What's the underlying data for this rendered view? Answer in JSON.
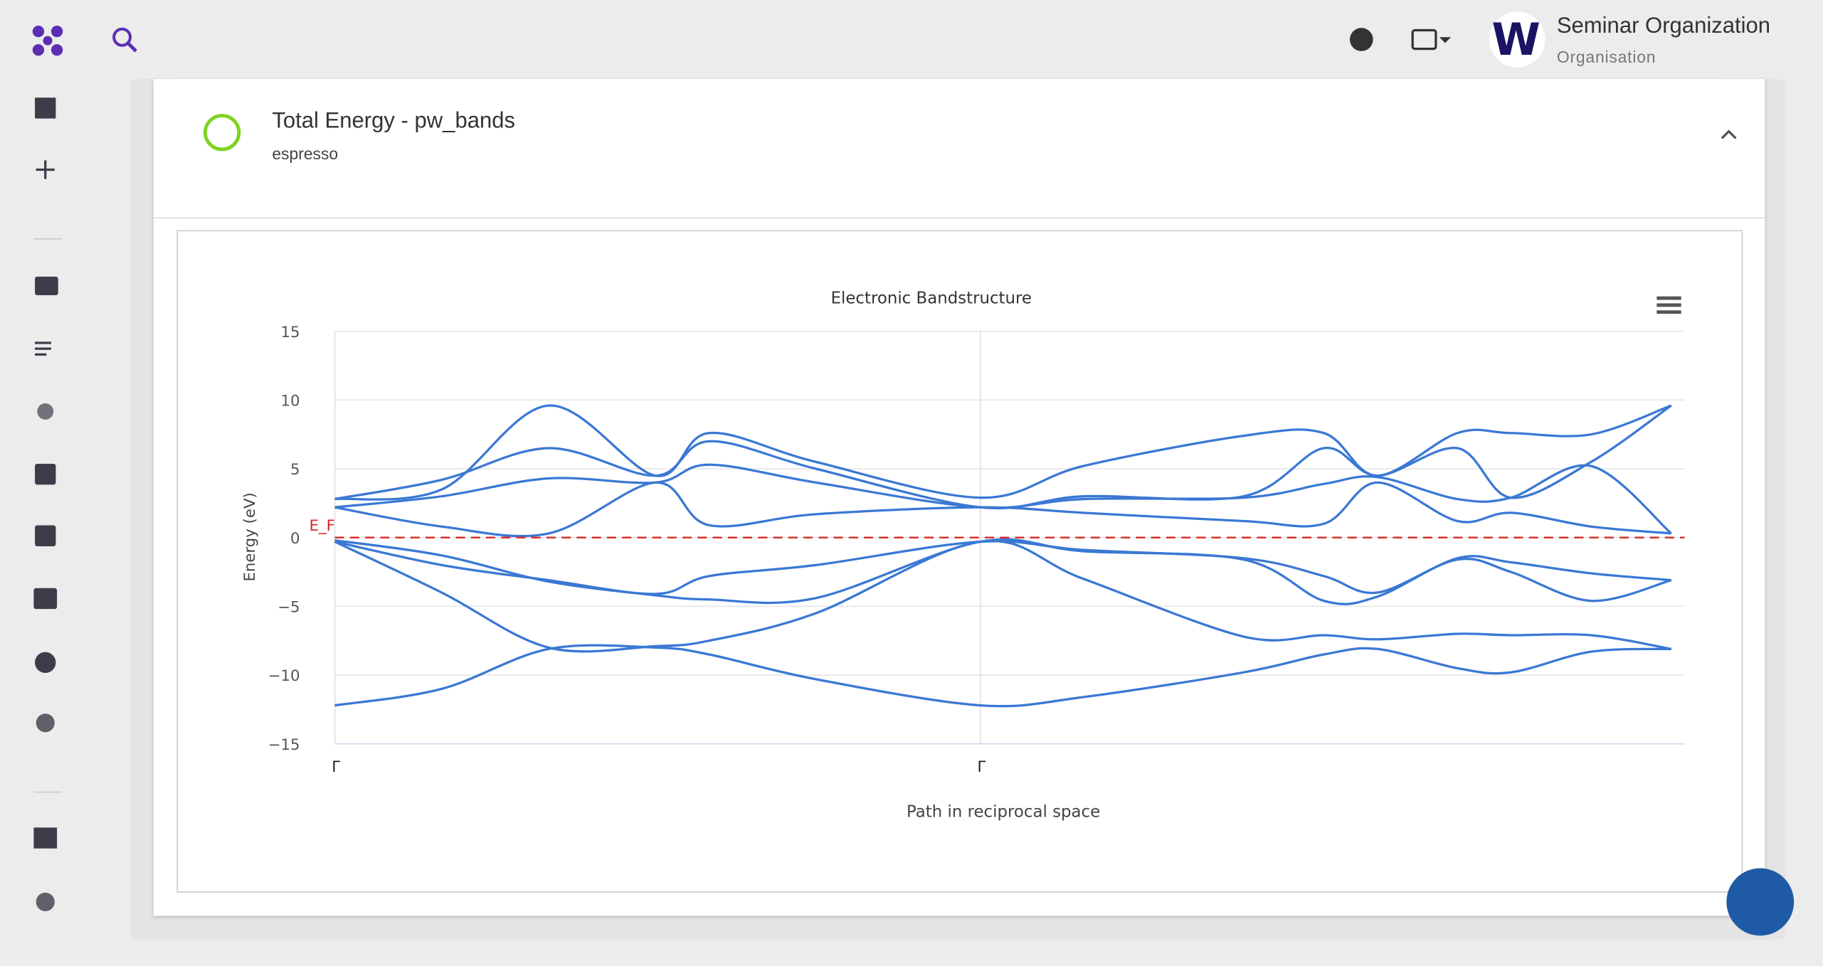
{
  "header": {
    "org_name": "Seminar Organization",
    "org_role": "Organisation",
    "avatar_letter": "W"
  },
  "card": {
    "title": "Total Energy - pw_bands",
    "subtitle": "espresso"
  },
  "chart_data": {
    "type": "line",
    "title": "Electronic Bandstructure",
    "x_label": "Path in reciprocal space",
    "y_label": "Energy (eV)",
    "color": "#3a78d4",
    "grid": true,
    "x": [
      0,
      8,
      16,
      24,
      28,
      36,
      48.3,
      56,
      68,
      74,
      78,
      84,
      88,
      94,
      100
    ],
    "series": [
      {
        "values": [
          -12.2,
          -11.0,
          -8.1,
          -8.0,
          -8.5,
          -10.3,
          -12.2,
          -11.6,
          -9.8,
          -8.5,
          -8.1,
          -9.5,
          -9.8,
          -8.3,
          -8.1
        ]
      },
      {
        "values": [
          -0.3,
          -4.0,
          -8.0,
          -7.9,
          -7.5,
          -5.5,
          -0.3,
          -3.0,
          -7.2,
          -7.1,
          -7.4,
          -7.0,
          -7.1,
          -7.1,
          -8.1
        ]
      },
      {
        "values": [
          -0.3,
          -2.0,
          -3.1,
          -4.1,
          -2.8,
          -2.0,
          -0.3,
          -0.9,
          -1.5,
          -2.8,
          -4.0,
          -1.6,
          -2.5,
          -4.6,
          -3.1
        ]
      },
      {
        "values": [
          -0.2,
          -1.3,
          -3.2,
          -4.2,
          -4.5,
          -4.4,
          -0.3,
          -1.0,
          -1.6,
          -4.6,
          -4.3,
          -1.5,
          -1.8,
          -2.6,
          -3.1
        ]
      },
      {
        "values": [
          2.2,
          0.8,
          0.3,
          4.0,
          0.9,
          1.7,
          2.2,
          1.8,
          1.2,
          1.0,
          4.0,
          1.2,
          1.8,
          0.8,
          0.3
        ]
      },
      {
        "values": [
          2.2,
          3.0,
          4.3,
          4.0,
          5.3,
          4.0,
          2.2,
          2.8,
          2.9,
          3.9,
          4.4,
          2.8,
          2.9,
          5.2,
          0.3
        ]
      },
      {
        "values": [
          2.8,
          4.2,
          6.5,
          4.5,
          7.0,
          5.0,
          2.2,
          3.0,
          3.0,
          6.5,
          4.5,
          6.5,
          2.9,
          5.5,
          9.6
        ]
      },
      {
        "values": [
          2.8,
          3.5,
          9.6,
          4.5,
          7.6,
          5.5,
          2.9,
          5.2,
          7.4,
          7.6,
          4.5,
          7.6,
          7.6,
          7.5,
          9.6
        ]
      }
    ],
    "fermi_energy": 0,
    "fermi_label": "E_F",
    "fermi_color": "#d62728",
    "xlim": [
      0,
      101
    ],
    "xticks": [
      {
        "value": 0,
        "label": "Γ"
      },
      {
        "value": 48.3,
        "label": "Γ"
      }
    ],
    "ylim": [
      -15,
      15
    ],
    "yticks": [
      {
        "value": -15,
        "label": "−15"
      },
      {
        "value": -10,
        "label": "−10"
      },
      {
        "value": -5,
        "label": "−5"
      },
      0,
      5,
      10,
      15
    ]
  }
}
